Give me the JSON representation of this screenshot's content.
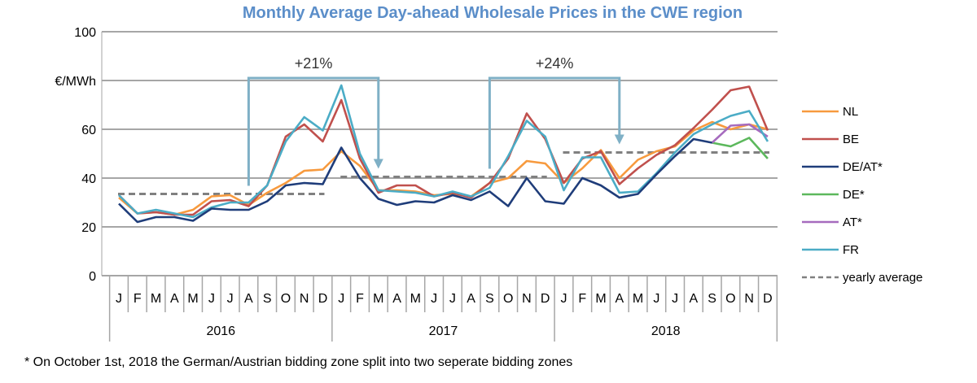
{
  "chart_data": {
    "type": "line",
    "title": "Monthly Average Day-ahead Wholesale Prices in the CWE region",
    "ylabel": "€/MWh",
    "ylim": [
      0,
      100
    ],
    "yticks": [
      0,
      20,
      40,
      60,
      100
    ],
    "grid": true,
    "legend_position": "right",
    "months": [
      "J",
      "F",
      "M",
      "A",
      "M",
      "J",
      "J",
      "A",
      "S",
      "O",
      "N",
      "D",
      "J",
      "F",
      "M",
      "A",
      "M",
      "J",
      "J",
      "A",
      "S",
      "O",
      "N",
      "D",
      "J",
      "F",
      "M",
      "A",
      "M",
      "J",
      "J",
      "A",
      "S",
      "O",
      "N",
      "D"
    ],
    "years": [
      "2016",
      "2017",
      "2018"
    ],
    "series": [
      {
        "name": "NL",
        "color": "#f79a3e",
        "values": [
          32,
          25.5,
          26,
          25,
          27,
          32.5,
          33,
          29,
          34,
          38,
          43,
          43.5,
          51,
          45,
          35,
          35,
          34.5,
          33,
          33.5,
          32.5,
          38,
          40,
          47,
          46,
          38,
          44,
          51.5,
          40,
          47.5,
          51,
          53,
          59.5,
          63,
          60,
          62,
          60
        ]
      },
      {
        "name": "BE",
        "color": "#c0504d",
        "values": [
          33,
          25.5,
          26,
          25,
          25,
          30.5,
          31,
          28.5,
          37,
          57,
          62,
          55,
          72,
          48,
          34,
          37,
          37,
          32.5,
          34,
          32,
          38,
          48,
          66.5,
          56,
          38,
          48,
          51,
          37.5,
          44,
          49.5,
          53.5,
          60.5,
          68,
          76,
          77.5,
          59.5
        ]
      },
      {
        "name": "DE/AT*",
        "color": "#1f3d7a",
        "values": [
          29.5,
          22,
          24,
          24,
          22.5,
          27.5,
          27,
          27,
          30.5,
          37,
          38,
          37.5,
          52.5,
          40,
          31.5,
          29,
          30.5,
          30,
          33,
          31,
          34.5,
          28.5,
          40,
          30.5,
          29.5,
          40,
          37,
          32,
          33.5,
          41.5,
          49,
          56,
          54.5,
          null,
          null,
          null
        ]
      },
      {
        "name": "DE*",
        "color": "#5cb85c",
        "values": [
          null,
          null,
          null,
          null,
          null,
          null,
          null,
          null,
          null,
          null,
          null,
          null,
          null,
          null,
          null,
          null,
          null,
          null,
          null,
          null,
          null,
          null,
          null,
          null,
          null,
          null,
          null,
          null,
          null,
          null,
          null,
          null,
          54.5,
          53,
          56.5,
          48
        ]
      },
      {
        "name": "AT*",
        "color": "#a66bbe",
        "values": [
          null,
          null,
          null,
          null,
          null,
          null,
          null,
          null,
          null,
          null,
          null,
          null,
          null,
          null,
          null,
          null,
          null,
          null,
          null,
          null,
          null,
          null,
          null,
          null,
          null,
          null,
          null,
          null,
          null,
          null,
          null,
          null,
          54.5,
          61.5,
          62,
          57
        ]
      },
      {
        "name": "FR",
        "color": "#4bacc6",
        "values": [
          33,
          25.5,
          27,
          25.5,
          24,
          28,
          30,
          30,
          37,
          55,
          65,
          59.5,
          78,
          50,
          35,
          34.5,
          34,
          32.5,
          34.5,
          32.5,
          36,
          49,
          63.5,
          57,
          35,
          48.5,
          48.5,
          34,
          34.5,
          42,
          50.5,
          58,
          62,
          65.5,
          67.5,
          55
        ]
      }
    ],
    "yearly_average": {
      "name": "yearly average",
      "color": "#808080",
      "values": [
        33.5,
        40.5,
        50.5
      ]
    },
    "annotations": [
      {
        "text": "+21%",
        "from_month": 7,
        "to_month": 14
      },
      {
        "text": "+24%",
        "from_month": 20,
        "to_month": 27
      }
    ],
    "footnote": "* On October 1st, 2018 the German/Austrian bidding zone split into two seperate bidding zones"
  }
}
